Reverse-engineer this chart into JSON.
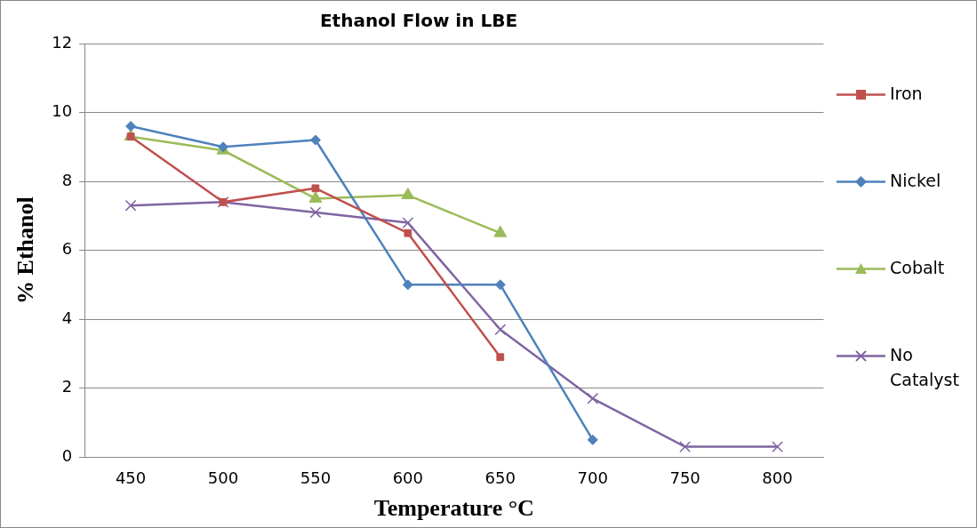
{
  "chart_data": {
    "type": "line",
    "title": "Ethanol Flow in LBE",
    "xlabel": "Temperature °C",
    "ylabel": "% Ethanol",
    "categories": [
      "450",
      "500",
      "550",
      "600",
      "650",
      "700",
      "750",
      "800"
    ],
    "series": [
      {
        "name": "Iron",
        "color": "#c0504d",
        "marker": "square",
        "values": [
          9.3,
          7.4,
          7.8,
          6.5,
          2.9,
          null,
          null,
          null
        ]
      },
      {
        "name": "Nickel",
        "color": "#4f81bd",
        "marker": "diamond",
        "values": [
          9.6,
          9.0,
          9.2,
          5.0,
          5.0,
          0.5,
          null,
          null
        ]
      },
      {
        "name": "Cobalt",
        "color": "#9bbb59",
        "marker": "triangle",
        "values": [
          9.3,
          8.9,
          7.5,
          7.6,
          6.5,
          null,
          null,
          null
        ]
      },
      {
        "name": "No Catalyst",
        "color": "#8064a2",
        "marker": "cross",
        "values": [
          7.3,
          7.4,
          7.1,
          6.8,
          3.7,
          1.7,
          0.3,
          0.3
        ]
      }
    ],
    "ylim": [
      0,
      12
    ],
    "yticks": [
      0,
      2,
      4,
      6,
      8,
      10,
      12
    ],
    "grid": "y",
    "legend": "right",
    "line_style": "solid"
  }
}
